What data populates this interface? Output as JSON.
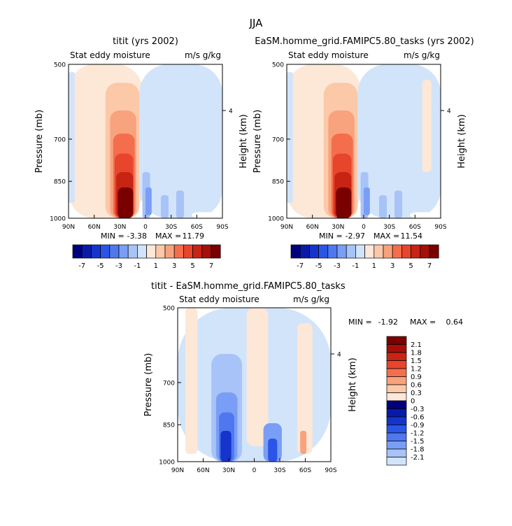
{
  "figure": {
    "title": "JJA"
  },
  "colors": {
    "neg_scale": [
      "#00007f",
      "#0a1aa8",
      "#1434cc",
      "#2b55e6",
      "#4f78ef",
      "#7a9ef5",
      "#a7c3f7",
      "#d2e4fa"
    ],
    "pos_scale": [
      "#fde7d7",
      "#fbc8a8",
      "#f8a27e",
      "#f46e4d",
      "#e8452d",
      "#c72414",
      "#a50f08",
      "#7a0000"
    ]
  },
  "chart_data": [
    {
      "type": "heatmap",
      "title": "titit (yrs 2002)",
      "subtitle_left": "Stat eddy moisture",
      "subtitle_right": "m/s g/kg",
      "ylabel": "Pressure (mb)",
      "ylabel_right": "Height (km)",
      "x_ticks": [
        "90N",
        "60N",
        "30N",
        "0",
        "30S",
        "60S",
        "90S"
      ],
      "y_ticks": [
        "500",
        "700",
        "850",
        "1000"
      ],
      "right_ticks": [
        "4"
      ],
      "stats": {
        "min_label": "MIN =",
        "min": "-3.38",
        "max_label": "MAX =",
        "max": "11.79"
      },
      "colorbar_labels": [
        "-7",
        "-5",
        "-3",
        "-1",
        "1",
        "3",
        "5",
        "7"
      ]
    },
    {
      "type": "heatmap",
      "title": "EaSM.homme_grid.FAMIPC5.80_tasks (yrs 2002)",
      "subtitle_left": "Stat eddy moisture",
      "subtitle_right": "m/s g/kg",
      "ylabel": "Pressure (mb)",
      "ylabel_right": "Height (km)",
      "x_ticks": [
        "90N",
        "60N",
        "30N",
        "0",
        "30S",
        "60S",
        "90S"
      ],
      "y_ticks": [
        "500",
        "700",
        "850",
        "1000"
      ],
      "right_ticks": [
        "4"
      ],
      "stats": {
        "min_label": "MIN =",
        "min": "-2.97",
        "max_label": "MAX =",
        "max": "11.54"
      },
      "colorbar_labels": [
        "-7",
        "-5",
        "-3",
        "-1",
        "1",
        "3",
        "5",
        "7"
      ]
    },
    {
      "type": "heatmap",
      "title": "titit - EaSM.homme_grid.FAMIPC5.80_tasks",
      "subtitle_left": "Stat eddy moisture",
      "subtitle_right": "m/s g/kg",
      "ylabel": "Pressure (mb)",
      "ylabel_right": "Height (km)",
      "x_ticks": [
        "90N",
        "60N",
        "30N",
        "0",
        "30S",
        "60S",
        "90S"
      ],
      "y_ticks": [
        "500",
        "700",
        "850",
        "1000"
      ],
      "right_ticks": [
        "4"
      ],
      "stats": {
        "min_label": "MIN =",
        "min": "-1.92",
        "max_label": "MAX =",
        "max": "0.64"
      },
      "colorbar_labels": [
        "2.1",
        "1.8",
        "1.5",
        "1.2",
        "0.9",
        "0.6",
        "0.3",
        "0",
        "-0.3",
        "-0.6",
        "-0.9",
        "-1.2",
        "-1.5",
        "-1.8",
        "-2.1"
      ]
    }
  ]
}
